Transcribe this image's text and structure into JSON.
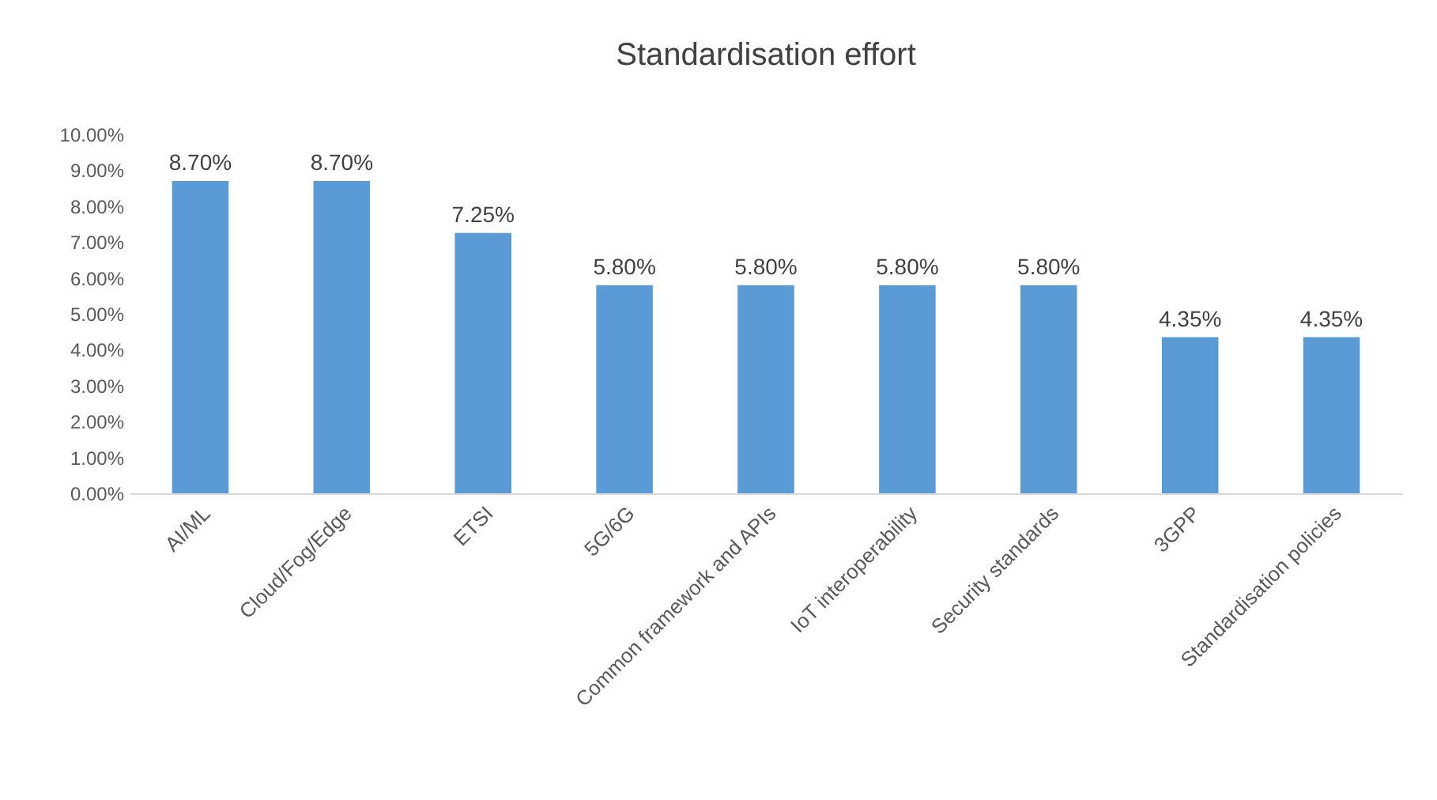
{
  "chart_data": {
    "type": "bar",
    "title": "Standardisation effort",
    "categories": [
      "AI/ML",
      "Cloud/Fog/Edge",
      "ETSI",
      "5G/6G",
      "Common framework and APIs",
      "IoT interoperability",
      "Security standards",
      "3GPP",
      "Standardisation policies"
    ],
    "values": [
      8.7,
      8.7,
      7.25,
      5.8,
      5.8,
      5.8,
      5.8,
      4.35,
      4.35
    ],
    "value_labels": [
      "8.70%",
      "8.70%",
      "7.25%",
      "5.80%",
      "5.80%",
      "5.80%",
      "5.80%",
      "4.35%",
      "4.35%"
    ],
    "color": "#5b9bd5",
    "ylim": [
      0,
      10
    ],
    "yticks": [
      {
        "value": 0,
        "label": "0.00%"
      },
      {
        "value": 1,
        "label": "1.00%"
      },
      {
        "value": 2,
        "label": "2.00%"
      },
      {
        "value": 3,
        "label": "3.00%"
      },
      {
        "value": 4,
        "label": "4.00%"
      },
      {
        "value": 5,
        "label": "5.00%"
      },
      {
        "value": 6,
        "label": "6.00%"
      },
      {
        "value": 7,
        "label": "7.00%"
      },
      {
        "value": 8,
        "label": "8.00%"
      },
      {
        "value": 9,
        "label": "9.00%"
      },
      {
        "value": 10,
        "label": "10.00%"
      }
    ]
  }
}
